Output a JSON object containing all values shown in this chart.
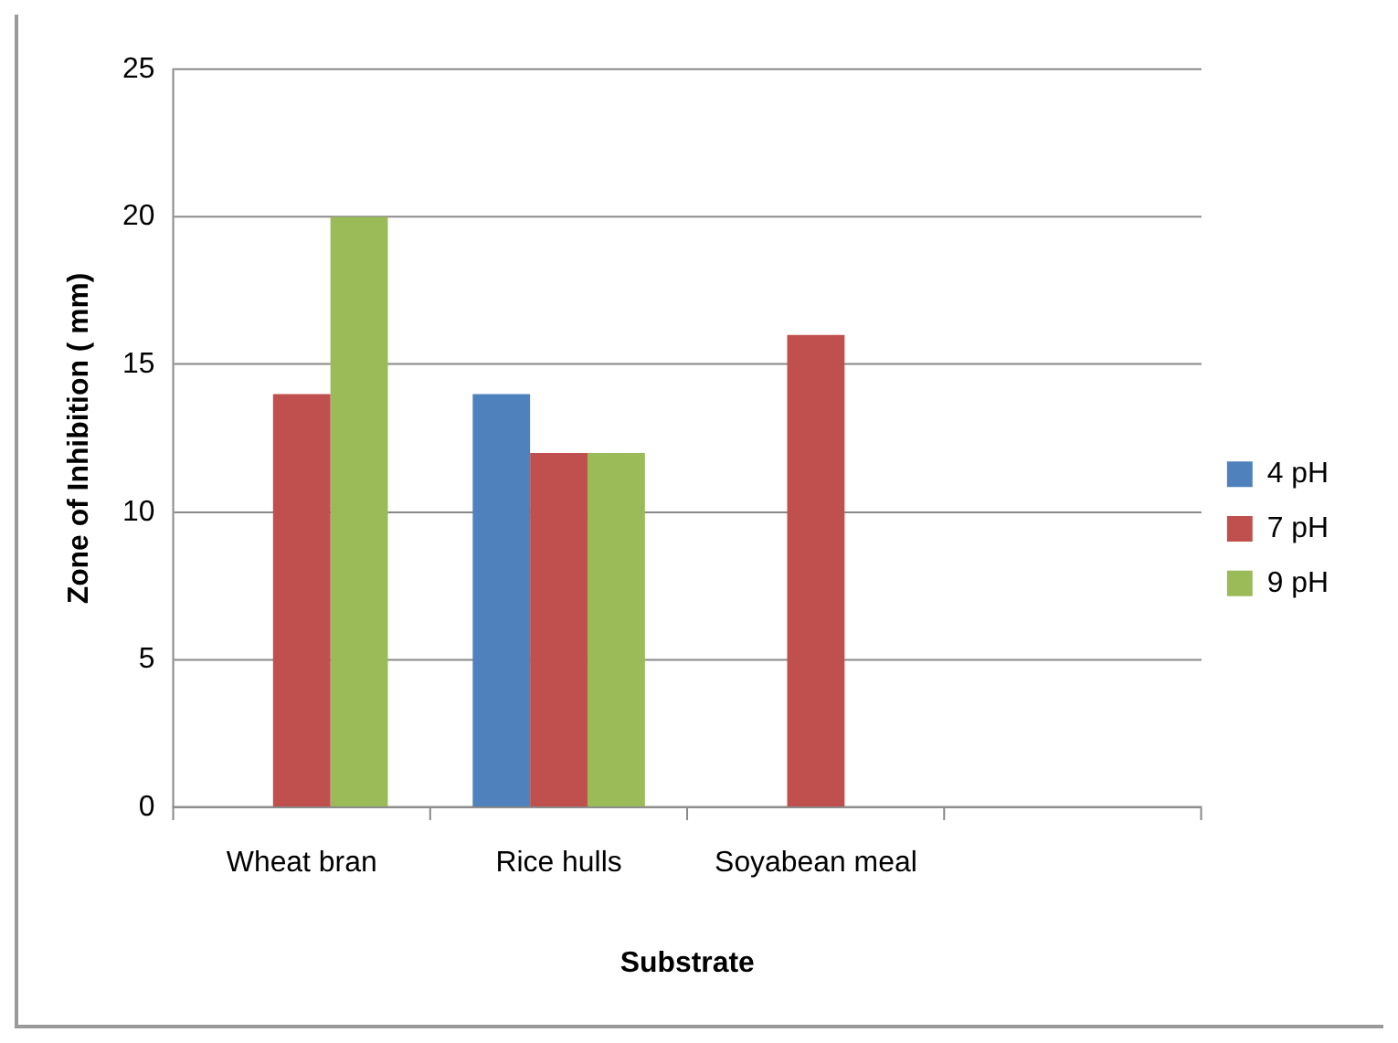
{
  "chart_data": {
    "type": "bar",
    "xlabel": "Substrate",
    "ylabel": "Zone of Inhibition ( mm)",
    "categories": [
      "Wheat bran",
      "Rice hulls",
      "Soyabean meal",
      null
    ],
    "series": [
      {
        "name": "4 pH",
        "color": "#4f81bd",
        "values": [
          null,
          14,
          null,
          null
        ]
      },
      {
        "name": "7 pH",
        "color": "#c0504d",
        "values": [
          14,
          12,
          16,
          null
        ]
      },
      {
        "name": "9 pH",
        "color": "#9bbb59",
        "values": [
          20,
          12,
          null,
          null
        ]
      }
    ],
    "ylim": [
      0,
      25
    ],
    "yticks": [
      0,
      5,
      10,
      15,
      20,
      25
    ],
    "grid": "y",
    "legend": "right"
  }
}
